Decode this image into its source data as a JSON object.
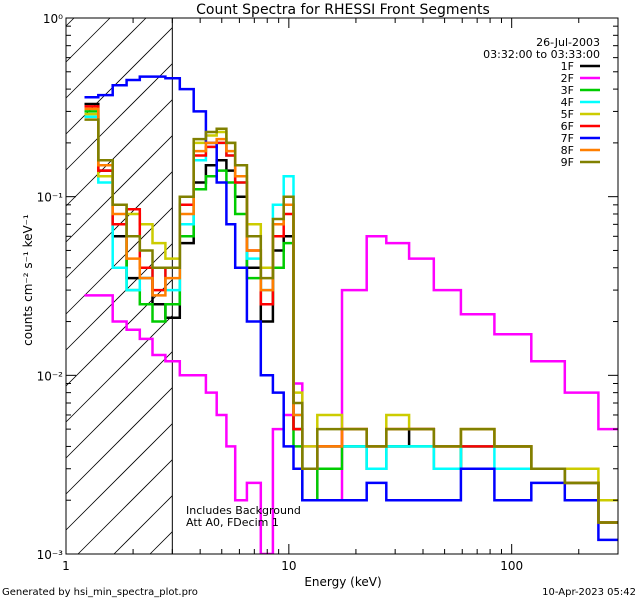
{
  "chart_data": {
    "type": "line",
    "xscale": "log",
    "yscale": "log",
    "title": "Count Spectra for RHESSI Front Segments",
    "xlabel": "Energy (keV)",
    "ylabel": "counts cm⁻² s⁻¹ keV⁻¹",
    "xlim": [
      1,
      300
    ],
    "ylim": [
      0.001,
      1.0
    ],
    "x_ticks": [
      {
        "value": 1,
        "label": "1"
      },
      {
        "value": 10,
        "label": "10"
      },
      {
        "value": 100,
        "label": "100"
      }
    ],
    "y_ticks": [
      {
        "value": 1.0,
        "label": "10⁰"
      },
      {
        "value": 0.1,
        "label": "10⁻¹"
      },
      {
        "value": 0.01,
        "label": "10⁻²"
      },
      {
        "value": 0.001,
        "label": "10⁻³"
      }
    ],
    "attenuator_region_max_keV": 3,
    "date": "26-Jul-2003",
    "time_range": "03:32:00 to 03:33:00",
    "annotation_lines": [
      "Includes Background",
      "Att A0, FDecim 1"
    ],
    "footer_left": "Generated by hsi_min_spectra_plot.pro",
    "footer_right": "10-Apr-2023 05:42",
    "energy_keV": [
      1.3,
      1.5,
      1.75,
      2.0,
      2.3,
      2.6,
      3.0,
      3.5,
      4.0,
      4.5,
      5.0,
      5.5,
      6.0,
      7.0,
      8.0,
      9.0,
      10.0,
      11.0,
      12.0,
      15.0,
      20.0,
      25.0,
      30.0,
      40.0,
      50.0,
      70.0,
      100.0,
      150.0,
      200.0,
      300.0
    ],
    "series": [
      {
        "name": "1F",
        "color": "#000000",
        "values": [
          0.33,
          0.14,
          0.06,
          0.035,
          0.035,
          0.025,
          0.021,
          0.055,
          0.12,
          0.15,
          0.16,
          0.14,
          0.1,
          0.04,
          0.02,
          0.05,
          0.06,
          0.005,
          0.003,
          0.004,
          0.004,
          0.003,
          0.004,
          0.005,
          0.003,
          0.004,
          0.004,
          0.003,
          0.0025,
          0.0015
        ]
      },
      {
        "name": "2F",
        "color": "#ff00ff",
        "values": [
          0.028,
          0.028,
          0.02,
          0.018,
          0.016,
          0.013,
          0.012,
          0.01,
          0.01,
          0.008,
          0.006,
          0.004,
          0.002,
          0.0025,
          0.001,
          0.005,
          0.006,
          0.009,
          0.004,
          0.002,
          0.03,
          0.06,
          0.055,
          0.045,
          0.03,
          0.022,
          0.017,
          0.012,
          0.008,
          0.005
        ]
      },
      {
        "name": "3F",
        "color": "#00cc00",
        "values": [
          0.3,
          0.16,
          0.07,
          0.03,
          0.025,
          0.02,
          0.025,
          0.06,
          0.11,
          0.13,
          0.14,
          0.12,
          0.08,
          0.035,
          0.025,
          0.04,
          0.055,
          0.004,
          0.002,
          0.003,
          0.004,
          0.003,
          0.004,
          0.004,
          0.003,
          0.004,
          0.004,
          0.003,
          0.0025,
          0.0015
        ]
      },
      {
        "name": "4F",
        "color": "#00ffff",
        "values": [
          0.28,
          0.12,
          0.04,
          0.03,
          0.035,
          0.04,
          0.03,
          0.07,
          0.16,
          0.19,
          0.2,
          0.17,
          0.12,
          0.045,
          0.03,
          0.09,
          0.13,
          0.006,
          0.003,
          0.004,
          0.004,
          0.003,
          0.004,
          0.004,
          0.003,
          0.004,
          0.003,
          0.003,
          0.0025,
          0.0015
        ]
      },
      {
        "name": "5F",
        "color": "#cccc00",
        "values": [
          0.29,
          0.13,
          0.09,
          0.08,
          0.07,
          0.055,
          0.045,
          0.1,
          0.2,
          0.22,
          0.23,
          0.2,
          0.15,
          0.07,
          0.04,
          0.07,
          0.09,
          0.008,
          0.004,
          0.006,
          0.005,
          0.004,
          0.006,
          0.005,
          0.004,
          0.005,
          0.004,
          0.003,
          0.003,
          0.002
        ]
      },
      {
        "name": "6F",
        "color": "#ff0000",
        "values": [
          0.32,
          0.14,
          0.07,
          0.085,
          0.04,
          0.03,
          0.04,
          0.09,
          0.17,
          0.19,
          0.2,
          0.17,
          0.12,
          0.05,
          0.025,
          0.06,
          0.08,
          0.005,
          0.003,
          0.004,
          0.005,
          0.004,
          0.005,
          0.005,
          0.004,
          0.004,
          0.004,
          0.003,
          0.0025,
          0.0015
        ]
      },
      {
        "name": "7F",
        "color": "#0000ff",
        "values": [
          0.36,
          0.37,
          0.42,
          0.45,
          0.47,
          0.47,
          0.46,
          0.4,
          0.3,
          0.2,
          0.12,
          0.07,
          0.04,
          0.02,
          0.01,
          0.008,
          0.004,
          0.003,
          0.002,
          0.002,
          0.002,
          0.0025,
          0.002,
          0.002,
          0.002,
          0.003,
          0.002,
          0.0025,
          0.002,
          0.0012
        ]
      },
      {
        "name": "8F",
        "color": "#ff7f00",
        "values": [
          0.31,
          0.15,
          0.08,
          0.045,
          0.035,
          0.028,
          0.035,
          0.08,
          0.18,
          0.2,
          0.21,
          0.18,
          0.13,
          0.05,
          0.03,
          0.07,
          0.09,
          0.006,
          0.003,
          0.004,
          0.005,
          0.004,
          0.005,
          0.005,
          0.004,
          0.005,
          0.004,
          0.003,
          0.0025,
          0.0015
        ]
      },
      {
        "name": "9F",
        "color": "#808000",
        "values": [
          0.27,
          0.16,
          0.09,
          0.06,
          0.05,
          0.04,
          0.04,
          0.1,
          0.21,
          0.23,
          0.24,
          0.2,
          0.15,
          0.06,
          0.035,
          0.075,
          0.1,
          0.007,
          0.003,
          0.005,
          0.005,
          0.004,
          0.005,
          0.005,
          0.004,
          0.005,
          0.004,
          0.003,
          0.0025,
          0.0015
        ]
      }
    ]
  }
}
